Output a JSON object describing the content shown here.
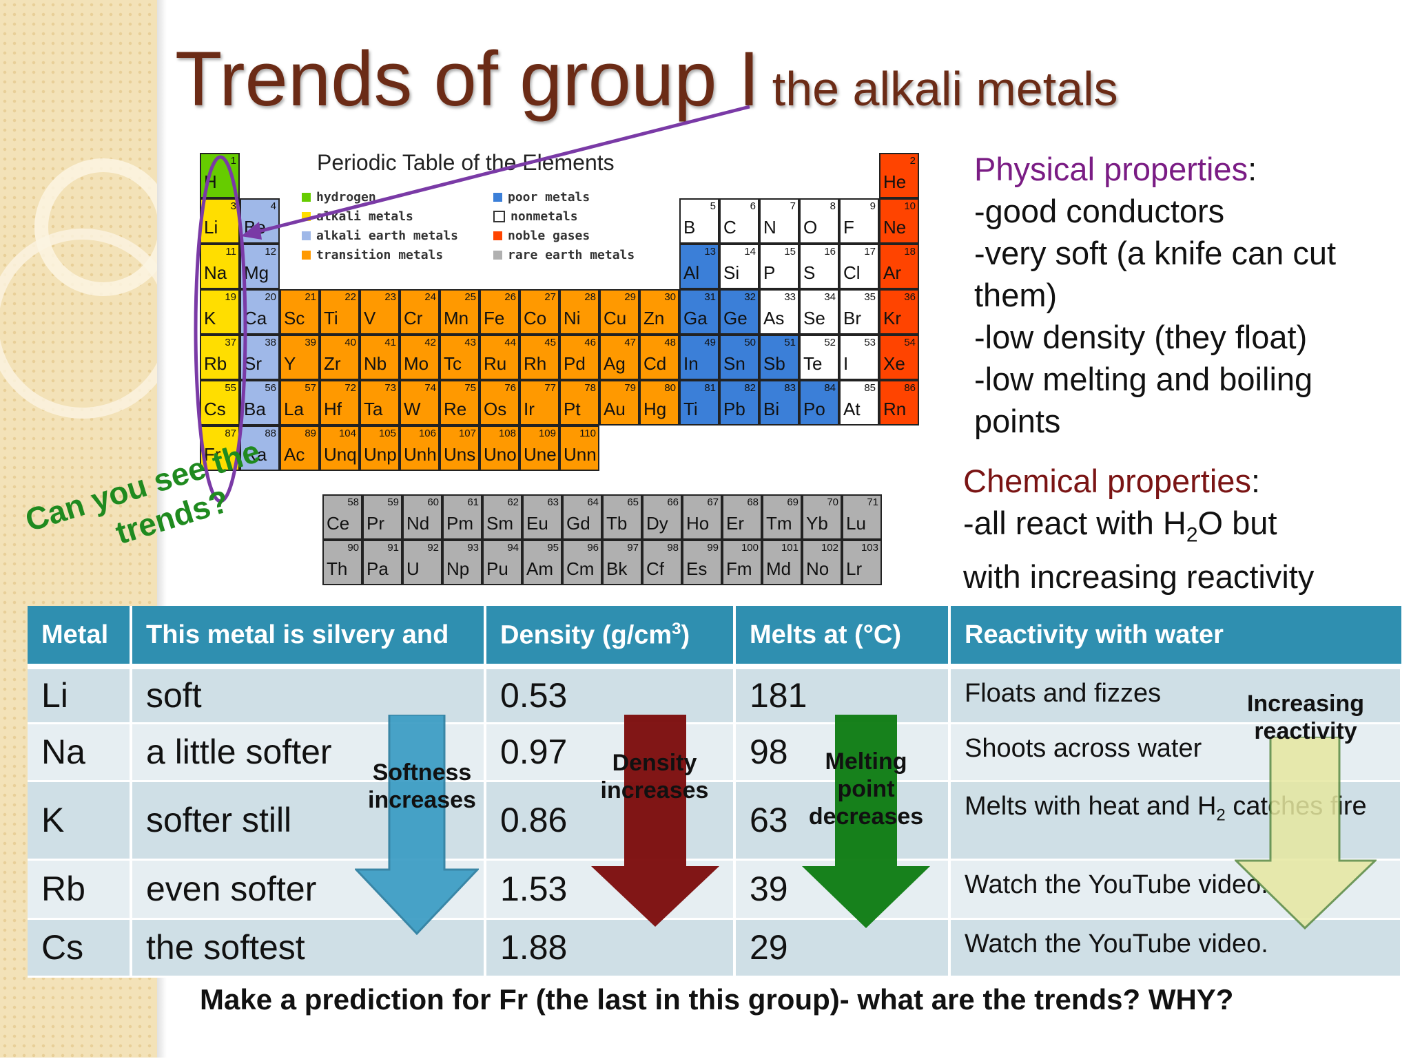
{
  "slide": {
    "title_main": "Trends of group I",
    "title_sub": "the alkali metals"
  },
  "periodic_table": {
    "title": "Periodic Table of the Elements",
    "legend": [
      {
        "label": "hydrogen",
        "color": "#66cc00"
      },
      {
        "label": "alkali metals",
        "color": "#ffde00"
      },
      {
        "label": "alkali earth metals",
        "color": "#9fb8e8"
      },
      {
        "label": "transition metals",
        "color": "#ff9900"
      },
      {
        "label": "poor metals",
        "color": "#3b7fd8"
      },
      {
        "label": "nonmetals",
        "color": "#ffffff"
      },
      {
        "label": "noble gases",
        "color": "#ff4400"
      },
      {
        "label": "rare earth metals",
        "color": "#b0b0b0"
      }
    ],
    "elements": [
      {
        "n": "1",
        "s": "H",
        "t": "h"
      },
      {
        "n": "2",
        "s": "He",
        "t": "ng"
      },
      {
        "n": "3",
        "s": "Li",
        "t": "am"
      },
      {
        "n": "4",
        "s": "Be",
        "t": "ae"
      },
      {
        "n": "5",
        "s": "B",
        "t": "nm"
      },
      {
        "n": "6",
        "s": "C",
        "t": "nm"
      },
      {
        "n": "7",
        "s": "N",
        "t": "nm"
      },
      {
        "n": "8",
        "s": "O",
        "t": "nm"
      },
      {
        "n": "9",
        "s": "F",
        "t": "nm"
      },
      {
        "n": "10",
        "s": "Ne",
        "t": "ng"
      },
      {
        "n": "11",
        "s": "Na",
        "t": "am"
      },
      {
        "n": "12",
        "s": "Mg",
        "t": "ae"
      },
      {
        "n": "13",
        "s": "Al",
        "t": "pm"
      },
      {
        "n": "14",
        "s": "Si",
        "t": "nm"
      },
      {
        "n": "15",
        "s": "P",
        "t": "nm"
      },
      {
        "n": "16",
        "s": "S",
        "t": "nm"
      },
      {
        "n": "17",
        "s": "Cl",
        "t": "nm"
      },
      {
        "n": "18",
        "s": "Ar",
        "t": "ng"
      },
      {
        "n": "19",
        "s": "K",
        "t": "am"
      },
      {
        "n": "20",
        "s": "Ca",
        "t": "ae"
      },
      {
        "n": "21",
        "s": "Sc",
        "t": "tm"
      },
      {
        "n": "22",
        "s": "Ti",
        "t": "tm"
      },
      {
        "n": "23",
        "s": "V",
        "t": "tm"
      },
      {
        "n": "24",
        "s": "Cr",
        "t": "tm"
      },
      {
        "n": "25",
        "s": "Mn",
        "t": "tm"
      },
      {
        "n": "26",
        "s": "Fe",
        "t": "tm"
      },
      {
        "n": "27",
        "s": "Co",
        "t": "tm"
      },
      {
        "n": "28",
        "s": "Ni",
        "t": "tm"
      },
      {
        "n": "29",
        "s": "Cu",
        "t": "tm"
      },
      {
        "n": "30",
        "s": "Zn",
        "t": "tm"
      },
      {
        "n": "31",
        "s": "Ga",
        "t": "pm"
      },
      {
        "n": "32",
        "s": "Ge",
        "t": "pm"
      },
      {
        "n": "33",
        "s": "As",
        "t": "nm"
      },
      {
        "n": "34",
        "s": "Se",
        "t": "nm"
      },
      {
        "n": "35",
        "s": "Br",
        "t": "nm"
      },
      {
        "n": "36",
        "s": "Kr",
        "t": "ng"
      },
      {
        "n": "37",
        "s": "Rb",
        "t": "am"
      },
      {
        "n": "38",
        "s": "Sr",
        "t": "ae"
      },
      {
        "n": "39",
        "s": "Y",
        "t": "tm"
      },
      {
        "n": "40",
        "s": "Zr",
        "t": "tm"
      },
      {
        "n": "41",
        "s": "Nb",
        "t": "tm"
      },
      {
        "n": "42",
        "s": "Mo",
        "t": "tm"
      },
      {
        "n": "43",
        "s": "Tc",
        "t": "tm"
      },
      {
        "n": "44",
        "s": "Ru",
        "t": "tm"
      },
      {
        "n": "45",
        "s": "Rh",
        "t": "tm"
      },
      {
        "n": "46",
        "s": "Pd",
        "t": "tm"
      },
      {
        "n": "47",
        "s": "Ag",
        "t": "tm"
      },
      {
        "n": "48",
        "s": "Cd",
        "t": "tm"
      },
      {
        "n": "49",
        "s": "In",
        "t": "pm"
      },
      {
        "n": "50",
        "s": "Sn",
        "t": "pm"
      },
      {
        "n": "51",
        "s": "Sb",
        "t": "pm"
      },
      {
        "n": "52",
        "s": "Te",
        "t": "nm"
      },
      {
        "n": "53",
        "s": "I",
        "t": "nm"
      },
      {
        "n": "54",
        "s": "Xe",
        "t": "ng"
      },
      {
        "n": "55",
        "s": "Cs",
        "t": "am"
      },
      {
        "n": "56",
        "s": "Ba",
        "t": "ae"
      },
      {
        "n": "57",
        "s": "La",
        "t": "tm"
      },
      {
        "n": "72",
        "s": "Hf",
        "t": "tm"
      },
      {
        "n": "73",
        "s": "Ta",
        "t": "tm"
      },
      {
        "n": "74",
        "s": "W",
        "t": "tm"
      },
      {
        "n": "75",
        "s": "Re",
        "t": "tm"
      },
      {
        "n": "76",
        "s": "Os",
        "t": "tm"
      },
      {
        "n": "77",
        "s": "Ir",
        "t": "tm"
      },
      {
        "n": "78",
        "s": "Pt",
        "t": "tm"
      },
      {
        "n": "79",
        "s": "Au",
        "t": "tm"
      },
      {
        "n": "80",
        "s": "Hg",
        "t": "tm"
      },
      {
        "n": "81",
        "s": "Ti",
        "t": "pm"
      },
      {
        "n": "82",
        "s": "Pb",
        "t": "pm"
      },
      {
        "n": "83",
        "s": "Bi",
        "t": "pm"
      },
      {
        "n": "84",
        "s": "Po",
        "t": "pm"
      },
      {
        "n": "85",
        "s": "At",
        "t": "nm"
      },
      {
        "n": "86",
        "s": "Rn",
        "t": "ng"
      },
      {
        "n": "87",
        "s": "Fr",
        "t": "am"
      },
      {
        "n": "88",
        "s": "Ra",
        "t": "ae"
      },
      {
        "n": "89",
        "s": "Ac",
        "t": "tm"
      },
      {
        "n": "104",
        "s": "Unq",
        "t": "tm"
      },
      {
        "n": "105",
        "s": "Unp",
        "t": "tm"
      },
      {
        "n": "106",
        "s": "Unh",
        "t": "tm"
      },
      {
        "n": "107",
        "s": "Uns",
        "t": "tm"
      },
      {
        "n": "108",
        "s": "Uno",
        "t": "tm"
      },
      {
        "n": "109",
        "s": "Une",
        "t": "tm"
      },
      {
        "n": "110",
        "s": "Unn",
        "t": "tm"
      },
      {
        "n": "58",
        "s": "Ce",
        "t": "re"
      },
      {
        "n": "59",
        "s": "Pr",
        "t": "re"
      },
      {
        "n": "60",
        "s": "Nd",
        "t": "re"
      },
      {
        "n": "61",
        "s": "Pm",
        "t": "re"
      },
      {
        "n": "62",
        "s": "Sm",
        "t": "re"
      },
      {
        "n": "63",
        "s": "Eu",
        "t": "re"
      },
      {
        "n": "64",
        "s": "Gd",
        "t": "re"
      },
      {
        "n": "65",
        "s": "Tb",
        "t": "re"
      },
      {
        "n": "66",
        "s": "Dy",
        "t": "re"
      },
      {
        "n": "67",
        "s": "Ho",
        "t": "re"
      },
      {
        "n": "68",
        "s": "Er",
        "t": "re"
      },
      {
        "n": "69",
        "s": "Tm",
        "t": "re"
      },
      {
        "n": "70",
        "s": "Yb",
        "t": "re"
      },
      {
        "n": "71",
        "s": "Lu",
        "t": "re"
      },
      {
        "n": "90",
        "s": "Th",
        "t": "re"
      },
      {
        "n": "91",
        "s": "Pa",
        "t": "re"
      },
      {
        "n": "92",
        "s": "U",
        "t": "re"
      },
      {
        "n": "93",
        "s": "Np",
        "t": "re"
      },
      {
        "n": "94",
        "s": "Pu",
        "t": "re"
      },
      {
        "n": "95",
        "s": "Am",
        "t": "re"
      },
      {
        "n": "96",
        "s": "Cm",
        "t": "re"
      },
      {
        "n": "97",
        "s": "Bk",
        "t": "re"
      },
      {
        "n": "98",
        "s": "Cf",
        "t": "re"
      },
      {
        "n": "99",
        "s": "Es",
        "t": "re"
      },
      {
        "n": "100",
        "s": "Fm",
        "t": "re"
      },
      {
        "n": "101",
        "s": "Md",
        "t": "re"
      },
      {
        "n": "102",
        "s": "No",
        "t": "re"
      },
      {
        "n": "103",
        "s": "Lr",
        "t": "re"
      }
    ],
    "type_colors": {
      "h": "#66cc00",
      "am": "#ffde00",
      "ae": "#9fb8e8",
      "tm": "#ff9900",
      "pm": "#3b7fd8",
      "nm": "#ffffff",
      "ng": "#ff4400",
      "re": "#b0b0b0"
    }
  },
  "physical": {
    "heading": "Physical properties",
    "colon": ":",
    "lines": [
      "-good conductors",
      "-very soft (a knife can cut",
      "them)",
      "-low density (they float)",
      "-low melting and boiling",
      "points"
    ]
  },
  "chemical": {
    "heading": "Chemical properties",
    "colon": ":",
    "line1_pre": "-all react with H",
    "line1_sub": "2",
    "line1_post": "O but",
    "line2": "with increasing reactivity"
  },
  "prompt_trends": {
    "line1": "Can you see the",
    "line2": "trends?"
  },
  "table": {
    "headers": {
      "metal": "Metal",
      "silvery": "This metal is silvery and",
      "density_pre": "Density (g/cm",
      "density_sup": "3",
      "density_post": ")",
      "melts": "Melts at (°C)",
      "reactivity": "Reactivity with water"
    },
    "rows": [
      {
        "metal": "Li",
        "silvery": "soft",
        "density": "0.53",
        "melts": "181",
        "react": "Floats and fizzes"
      },
      {
        "metal": "Na",
        "silvery": "a little softer",
        "density": "0.97",
        "melts": "98",
        "react": "Shoots across water"
      },
      {
        "metal": "K",
        "silvery": "softer still",
        "density": "0.86",
        "melts": "63",
        "react_pre": "Melts with heat and H",
        "react_sub": "2",
        "react_post": " catches fire"
      },
      {
        "metal": "Rb",
        "silvery": "even softer",
        "density": "1.53",
        "melts": "39",
        "react": "Watch the YouTube video."
      },
      {
        "metal": "Cs",
        "silvery": "the softest",
        "density": "1.88",
        "melts": "29",
        "react": "Watch the YouTube video."
      }
    ]
  },
  "arrows": {
    "softness": {
      "line1": "Softness",
      "line2": "increases",
      "color": "#3a9cc4"
    },
    "density": {
      "line1": "Density",
      "line2": "increases",
      "color": "#7b0a0a"
    },
    "melting": {
      "line1": "Melting",
      "line2": "point",
      "line3": "decreases",
      "color": "#0c7a10"
    },
    "reactivity": {
      "line1": "Increasing",
      "line2": "reactivity",
      "color": "#e6e8a0"
    }
  },
  "footer": "Make a prediction for Fr (the last in this group)- what are the trends? WHY?"
}
